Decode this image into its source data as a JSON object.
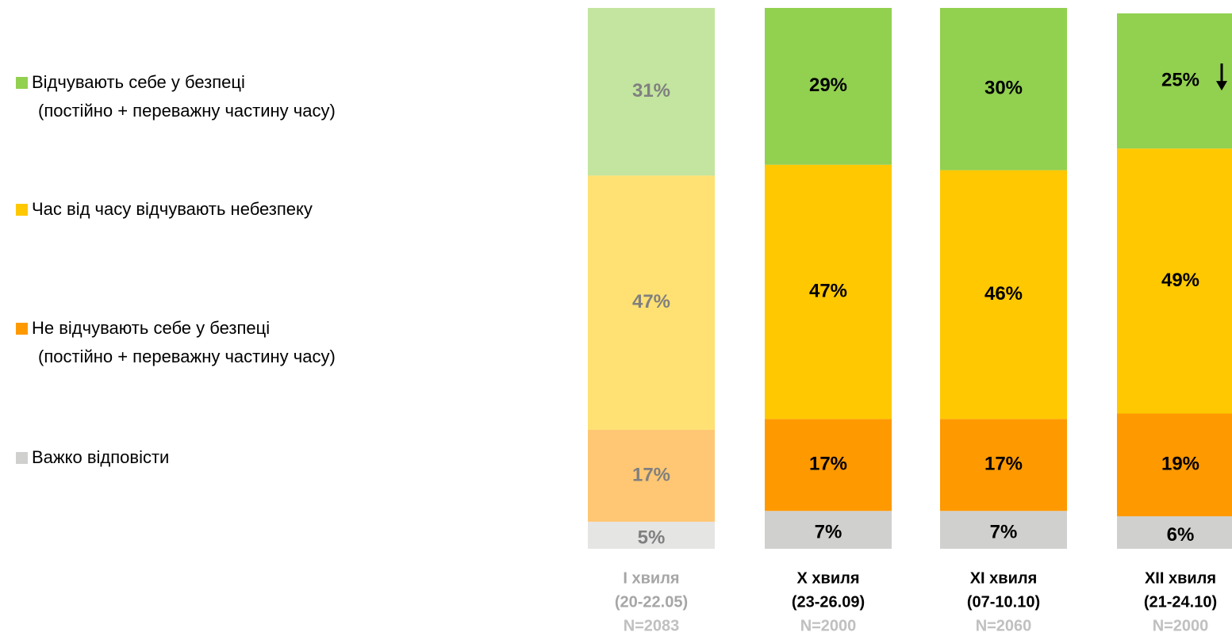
{
  "chart_data": {
    "type": "stacked_bar_100",
    "categories": [
      "I хвиля",
      "X хвиля",
      "XI хвиля",
      "XII хвиля"
    ],
    "category_dates": [
      "(20-22.05)",
      "(23-26.09)",
      "(07-10.10)",
      "(21-24.10)"
    ],
    "category_samples": [
      "N=2083",
      "N=2000",
      "N=2060",
      "N=2000"
    ],
    "muted_categories": [
      0
    ],
    "ylim": [
      0,
      100
    ],
    "series": [
      {
        "name": "Відчувають себе у безпеці",
        "note": "(постійно + переважну частину часу)",
        "color": "#92d050",
        "values": [
          31,
          29,
          30,
          25
        ],
        "value_labels": [
          "31%",
          "29%",
          "30%",
          "25%"
        ]
      },
      {
        "name": "Час від часу відчувають небезпеку",
        "color": "#ffc800",
        "values": [
          47,
          47,
          46,
          49
        ],
        "value_labels": [
          "47%",
          "47%",
          "46%",
          "49%"
        ]
      },
      {
        "name": "Не відчувають себе у безпеці",
        "note": "(постійно + переважну частину часу)",
        "color": "#ff9900",
        "values": [
          17,
          17,
          17,
          19
        ],
        "value_labels": [
          "17%",
          "17%",
          "17%",
          "19%"
        ]
      },
      {
        "name": "Важко відповісти",
        "color": "#d0d0ce",
        "values": [
          5,
          7,
          7,
          6
        ],
        "value_labels": [
          "5%",
          "7%",
          "7%",
          "6%"
        ]
      }
    ],
    "trend_markers": [
      {
        "category": 3,
        "series": 0,
        "direction": "down"
      }
    ]
  }
}
